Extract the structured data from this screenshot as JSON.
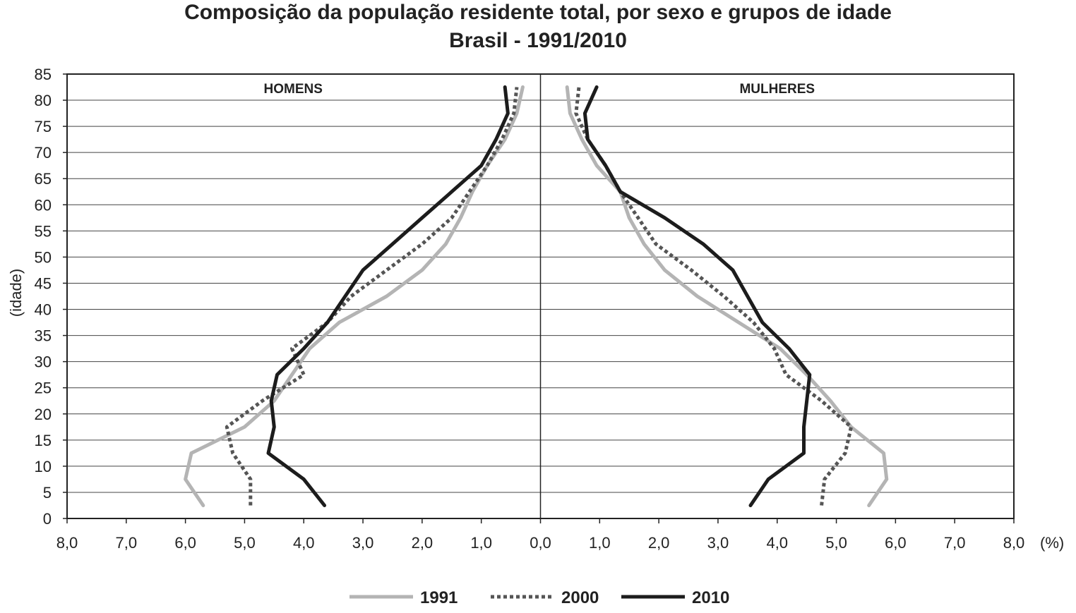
{
  "chart_data": {
    "type": "line",
    "title": "Composição da população residente total, por sexo e grupos de idade",
    "subtitle": "Brasil - 1991/2010",
    "ylabel": "(idade)",
    "xunit": "(%)",
    "panels": [
      "HOMENS",
      "MULHERES"
    ],
    "xlim": [
      0,
      8
    ],
    "ylim": [
      0,
      85
    ],
    "xticks": [
      "8,0",
      "7,0",
      "6,0",
      "5,0",
      "4,0",
      "3,0",
      "2,0",
      "1,0",
      "0,0",
      "1,0",
      "2,0",
      "3,0",
      "4,0",
      "5,0",
      "6,0",
      "7,0",
      "8,0"
    ],
    "yticks": [
      "0",
      "5",
      "10",
      "15",
      "20",
      "25",
      "30",
      "35",
      "40",
      "45",
      "50",
      "55",
      "60",
      "65",
      "70",
      "75",
      "80",
      "85"
    ],
    "age_midpoints": [
      2.5,
      7.5,
      12.5,
      17.5,
      22.5,
      27.5,
      32.5,
      37.5,
      42.5,
      47.5,
      52.5,
      57.5,
      62.5,
      67.5,
      72.5,
      77.5,
      82.5
    ],
    "grid": "horizontal",
    "legend_position": "bottom",
    "series": [
      {
        "name": "1991",
        "color": "#b4b4b4",
        "style": "solid",
        "men": [
          5.7,
          6.0,
          5.9,
          5.0,
          4.5,
          4.2,
          3.9,
          3.4,
          2.6,
          2.0,
          1.6,
          1.35,
          1.15,
          0.9,
          0.6,
          0.4,
          0.3
        ],
        "women": [
          5.55,
          5.85,
          5.8,
          5.25,
          4.9,
          4.5,
          4.05,
          3.35,
          2.65,
          2.1,
          1.75,
          1.5,
          1.35,
          0.95,
          0.7,
          0.5,
          0.45
        ]
      },
      {
        "name": "2000",
        "color": "#555555",
        "style": "dotted",
        "men": [
          4.9,
          4.9,
          5.2,
          5.3,
          4.7,
          4.0,
          4.2,
          3.6,
          3.2,
          2.6,
          2.0,
          1.5,
          1.2,
          0.9,
          0.65,
          0.45,
          0.4
        ],
        "women": [
          4.75,
          4.8,
          5.15,
          5.25,
          4.75,
          4.15,
          3.95,
          3.6,
          3.1,
          2.55,
          1.95,
          1.65,
          1.35,
          1.1,
          0.8,
          0.6,
          0.65
        ]
      },
      {
        "name": "2010",
        "color": "#1c1c1c",
        "style": "solid",
        "men": [
          3.65,
          4.0,
          4.6,
          4.5,
          4.55,
          4.45,
          4.0,
          3.6,
          3.3,
          3.0,
          2.5,
          2.0,
          1.5,
          1.0,
          0.75,
          0.55,
          0.6
        ],
        "women": [
          3.55,
          3.85,
          4.45,
          4.45,
          4.5,
          4.55,
          4.2,
          3.75,
          3.5,
          3.25,
          2.75,
          2.1,
          1.35,
          1.1,
          0.8,
          0.75,
          0.95
        ]
      }
    ]
  }
}
